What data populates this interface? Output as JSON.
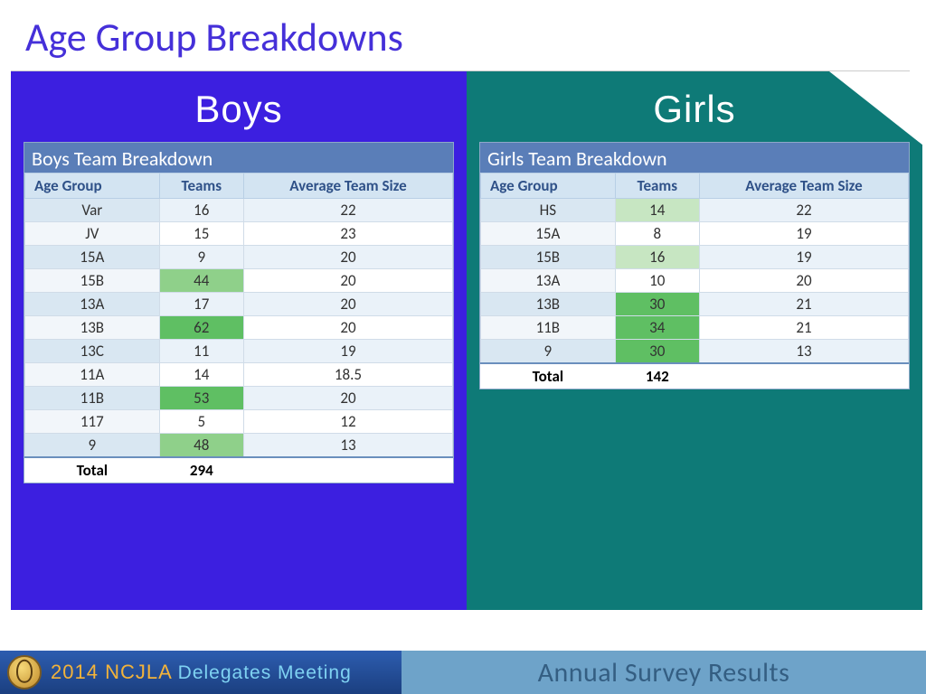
{
  "title": "Age Group Breakdowns",
  "boys": {
    "header": "Boys",
    "tableTitle": "Boys Team Breakdown",
    "columns": [
      "Age Group",
      "Teams",
      "Average Team Size"
    ],
    "rows": [
      {
        "age": "Var",
        "teams": "16",
        "avg": "22",
        "hl": 0
      },
      {
        "age": "JV",
        "teams": "15",
        "avg": "23",
        "hl": 0
      },
      {
        "age": "15A",
        "teams": "9",
        "avg": "20",
        "hl": 0
      },
      {
        "age": "15B",
        "teams": "44",
        "avg": "20",
        "hl": 2
      },
      {
        "age": "13A",
        "teams": "17",
        "avg": "20",
        "hl": 0
      },
      {
        "age": "13B",
        "teams": "62",
        "avg": "20",
        "hl": 3
      },
      {
        "age": "13C",
        "teams": "11",
        "avg": "19",
        "hl": 0
      },
      {
        "age": "11A",
        "teams": "14",
        "avg": "18.5",
        "hl": 0
      },
      {
        "age": "11B",
        "teams": "53",
        "avg": "20",
        "hl": 3
      },
      {
        "age": "117",
        "teams": "5",
        "avg": "12",
        "hl": 0
      },
      {
        "age": "9",
        "teams": "48",
        "avg": "13",
        "hl": 2
      }
    ],
    "totalLabel": "Total",
    "totalTeams": "294"
  },
  "girls": {
    "header": "Girls",
    "tableTitle": "Girls Team Breakdown",
    "columns": [
      "Age Group",
      "Teams",
      "Average Team Size"
    ],
    "rows": [
      {
        "age": "HS",
        "teams": "14",
        "avg": "22",
        "hl": 1
      },
      {
        "age": "15A",
        "teams": "8",
        "avg": "19",
        "hl": 0
      },
      {
        "age": "15B",
        "teams": "16",
        "avg": "19",
        "hl": 1
      },
      {
        "age": "13A",
        "teams": "10",
        "avg": "20",
        "hl": 0
      },
      {
        "age": "13B",
        "teams": "30",
        "avg": "21",
        "hl": 3
      },
      {
        "age": "11B",
        "teams": "34",
        "avg": "21",
        "hl": 3
      },
      {
        "age": "9",
        "teams": "30",
        "avg": "13",
        "hl": 3
      }
    ],
    "totalLabel": "Total",
    "totalTeams": "142"
  },
  "footer": {
    "year": "2014 ",
    "org": "NCJLA ",
    "rest": "Delegates Meeting",
    "right": "Annual Survey Results"
  },
  "heatColors": {
    "0": null,
    "1": "#c7e6c2",
    "2": "#8fd08a",
    "3": "#5fbf63"
  }
}
